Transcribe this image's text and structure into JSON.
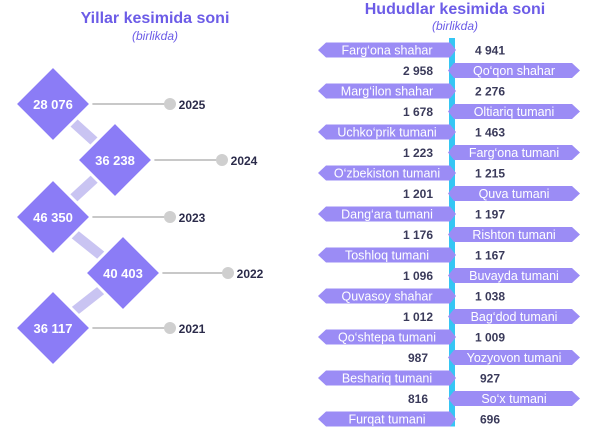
{
  "chart_data": [
    {
      "type": "diamond-timeline",
      "title": "Yillar kesimida soni",
      "subtitle": "(birlikda)",
      "categories": [
        "2025",
        "2024",
        "2023",
        "2022",
        "2021"
      ],
      "values": [
        28076,
        36238,
        46350,
        40403,
        36117
      ],
      "value_labels": [
        "28 076",
        "36 238",
        "46 350",
        "40 403",
        "36 117"
      ]
    },
    {
      "type": "ranked-list",
      "title": "Hududlar kesimida soni",
      "subtitle": "(birlikda)",
      "categories": [
        "Farg‘ona shahar",
        "Qo‘qon shahar",
        "Marg‘ilon shahar",
        "Oltiariq tumani",
        "Uchko‘prik tumani",
        "Farg‘ona tumani",
        "O‘zbekiston tumani",
        "Quva tumani",
        "Dang‘ara tumani",
        "Rishton tumani",
        "Toshloq tumani",
        "Buvayda tumani",
        "Quvasoy shahar",
        "Bag‘dod tumani",
        "Qo‘shtepa tumani",
        "Yozyovon tumani",
        "Beshariq tumani",
        "So‘x tumani",
        "Furqat tumani"
      ],
      "values": [
        4941,
        2958,
        2276,
        1678,
        1463,
        1223,
        1215,
        1201,
        1197,
        1176,
        1167,
        1096,
        1038,
        1012,
        1009,
        987,
        927,
        816,
        696
      ],
      "value_labels": [
        "4 941",
        "2 958",
        "2 276",
        "1 678",
        "1 463",
        "1 223",
        "1 215",
        "1 201",
        "1 197",
        "1 176",
        "1 167",
        "1 096",
        "1 038",
        "1 012",
        "1 009",
        "987",
        "927",
        "816",
        "696"
      ]
    }
  ],
  "colors": {
    "title": "#6c5ce7",
    "diamond": "#8b7cf6",
    "diamond_border": "#ffffff",
    "connector": "#c9c4f2",
    "year_line": "#c8c8c8",
    "year_dot": "#cfcfcf",
    "ribbon": "#9b8cf5",
    "spine": "#35c6f4",
    "value_text": "#3a3a5a",
    "year_text": "#2b2b4a"
  }
}
